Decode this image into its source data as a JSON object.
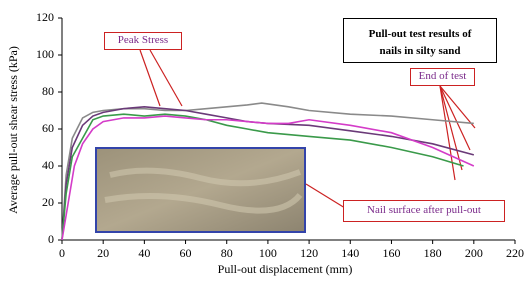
{
  "chart_data": {
    "type": "line",
    "title": "Pull-out test results of nails in silty sand",
    "x_label": "Pull-out displacement (mm)",
    "y_label": "Average pull-out shear stress (kPa)",
    "annotations": [
      "Peak Stress",
      "End of test",
      "Nail surface after pull-out"
    ],
    "xlim": [
      0,
      220
    ],
    "xticks": [
      0,
      20,
      40,
      60,
      80,
      100,
      120,
      140,
      160,
      180,
      200,
      220
    ],
    "ylim": [
      0,
      120
    ],
    "yticks": [
      0,
      20,
      40,
      60,
      80,
      100,
      120
    ],
    "grid": false,
    "series": [
      {
        "color": "#8a8a8a",
        "x": [
          0,
          2,
          5,
          10,
          15,
          20,
          30,
          40,
          50,
          60,
          70,
          80,
          90,
          97,
          110,
          120,
          140,
          160,
          180,
          200
        ],
        "values": [
          0,
          35,
          55,
          66,
          69,
          70,
          71,
          71,
          70,
          70,
          71,
          72,
          73,
          74,
          72,
          70,
          68,
          67,
          65,
          63
        ]
      },
      {
        "color": "#6a3a78",
        "x": [
          0,
          2,
          5,
          10,
          15,
          20,
          30,
          40,
          50,
          60,
          70,
          80,
          90,
          100,
          120,
          140,
          160,
          180,
          200
        ],
        "values": [
          0,
          30,
          50,
          62,
          67,
          69,
          71,
          72,
          71,
          70,
          68,
          66,
          64,
          63,
          62,
          59,
          56,
          52,
          46
        ]
      },
      {
        "color": "#3a9a4a",
        "x": [
          0,
          2,
          5,
          10,
          15,
          20,
          30,
          40,
          50,
          60,
          70,
          80,
          90,
          100,
          120,
          140,
          160,
          180,
          195
        ],
        "values": [
          0,
          25,
          45,
          55,
          65,
          67,
          68,
          67,
          68,
          67,
          65,
          62,
          60,
          58,
          56,
          54,
          50,
          45,
          40
        ]
      },
      {
        "color": "#d43cc8",
        "x": [
          0,
          3,
          6,
          10,
          15,
          20,
          30,
          40,
          50,
          60,
          70,
          80,
          90,
          100,
          110,
          120,
          140,
          160,
          180,
          200
        ],
        "values": [
          0,
          20,
          40,
          52,
          60,
          64,
          66,
          66,
          67,
          66,
          65,
          65,
          64,
          63,
          63,
          65,
          62,
          58,
          50,
          40
        ]
      }
    ]
  }
}
